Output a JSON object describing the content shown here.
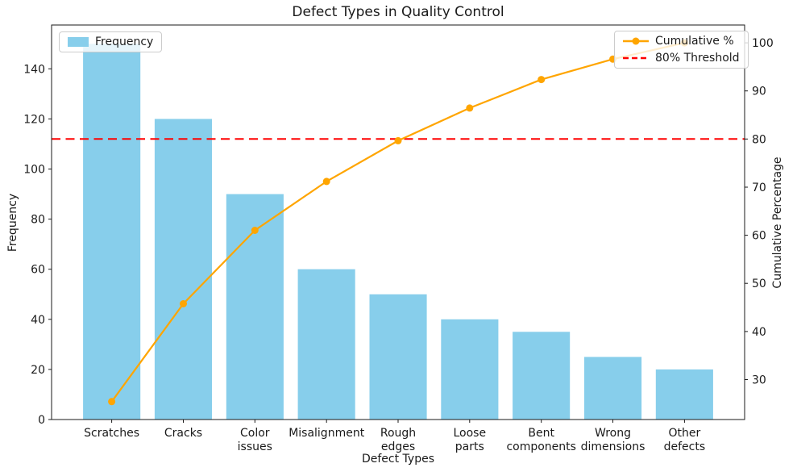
{
  "chart_data": {
    "type": "pareto-bar-line",
    "title": "Defect Types in Quality Control",
    "xlabel": "Defect Types",
    "ylabel_left": "Frequency",
    "ylabel_right": "Cumulative Percentage",
    "categories": [
      "Scratches",
      "Cracks",
      "Color issues",
      "Misalignment",
      "Rough edges",
      "Loose parts",
      "Bent components",
      "Wrong dimensions",
      "Other defects"
    ],
    "series": [
      {
        "name": "Frequency",
        "type": "bar",
        "axis": "left",
        "color": "#87CEEB",
        "values": [
          150,
          120,
          90,
          60,
          50,
          40,
          35,
          25,
          20
        ]
      },
      {
        "name": "Cumulative %",
        "type": "line-marker",
        "axis": "right",
        "color": "#FFA500",
        "values": [
          25.42,
          45.76,
          61.02,
          71.19,
          79.66,
          86.44,
          92.37,
          96.61,
          100.0
        ]
      }
    ],
    "threshold": {
      "name": "80% Threshold",
      "axis": "right",
      "value": 80,
      "color": "#FF0000",
      "style": "dashed"
    },
    "axes": {
      "left": {
        "ticks": [
          0,
          20,
          40,
          60,
          80,
          100,
          120,
          140
        ],
        "range": [
          0,
          157.5
        ]
      },
      "right": {
        "ticks": [
          30,
          40,
          50,
          60,
          70,
          80,
          90,
          100
        ],
        "range": [
          21.7,
          103.7
        ]
      },
      "x": {
        "range": [
          -0.84,
          8.84
        ]
      }
    },
    "legend_positions": {
      "frequency": "upper left",
      "cumulative": "upper right"
    },
    "grid": "off",
    "ink_color": "#1a1a1a",
    "background": "#ffffff"
  }
}
